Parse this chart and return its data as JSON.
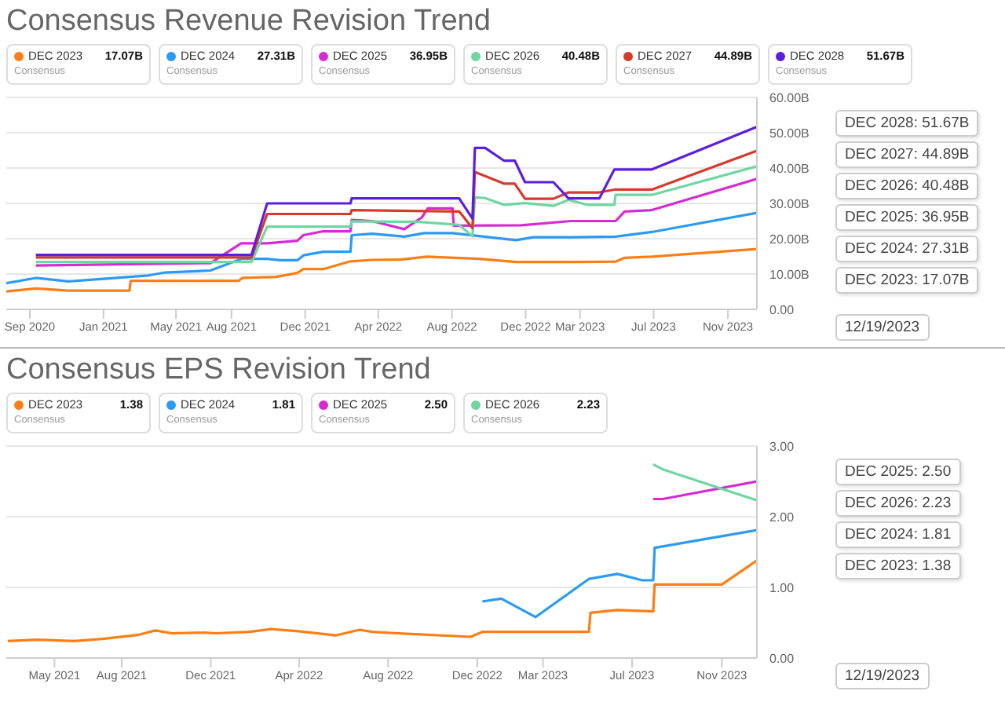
{
  "chart_data": [
    {
      "type": "line",
      "title": "Consensus Revenue Revision Trend",
      "legend": "top",
      "grid": "y",
      "marker": "none",
      "xlim": [
        "2020-07-24",
        "2023-12-19"
      ],
      "xticks": [
        {
          "value": "2020-09-01",
          "label": "Sep 2020"
        },
        {
          "value": "2021-01-01",
          "label": "Jan 2021"
        },
        {
          "value": "2021-05-01",
          "label": "May 2021"
        },
        {
          "value": "2021-08-01",
          "label": "Aug 2021"
        },
        {
          "value": "2021-12-01",
          "label": "Dec 2021"
        },
        {
          "value": "2022-04-01",
          "label": "Apr 2022"
        },
        {
          "value": "2022-08-01",
          "label": "Aug 2022"
        },
        {
          "value": "2022-12-01",
          "label": "Dec 2022"
        },
        {
          "value": "2023-03-01",
          "label": "Mar 2023"
        },
        {
          "value": "2023-07-01",
          "label": "Jul 2023"
        },
        {
          "value": "2023-11-01",
          "label": "Nov 2023"
        }
      ],
      "ylim": [
        0,
        60
      ],
      "yticks": [
        {
          "value": 0,
          "label": "0.00"
        },
        {
          "value": 10,
          "label": "10.00B"
        },
        {
          "value": 20,
          "label": "20.00B"
        },
        {
          "value": 30,
          "label": "30.00B"
        },
        {
          "value": 40,
          "label": "40.00B"
        },
        {
          "value": 50,
          "label": "50.00B"
        },
        {
          "value": 60,
          "label": "60.00B"
        }
      ],
      "annotations": [
        "17.07B",
        "27.31B",
        "36.95B",
        "40.48B",
        "44.89B",
        "51.67B",
        "Consensus",
        "Consensus",
        "Consensus",
        "Consensus",
        "Consensus",
        "Consensus",
        "DEC 2028: 51.67B",
        "DEC 2027: 44.89B",
        "DEC 2026: 40.48B",
        "DEC 2025: 36.95B",
        "DEC 2024: 27.31B",
        "DEC 2023: 17.07B",
        "12/19/2023"
      ],
      "series": [
        {
          "name": "DEC 2023",
          "color": "#fd7e14",
          "x": [
            "2020-07-24",
            "2020-09-11",
            "2020-11-04",
            "2021-02-13",
            "2021-02-15",
            "2021-08-13",
            "2021-08-19",
            "2021-10-14",
            "2021-11-18",
            "2021-11-28",
            "2021-12-31",
            "2022-02-14",
            "2022-03-22",
            "2022-05-08",
            "2022-06-20",
            "2022-09-15",
            "2022-11-15",
            "2023-02-14",
            "2023-04-29",
            "2023-05-14",
            "2023-06-28",
            "2023-12-19"
          ],
          "values": [
            5.1,
            5.9,
            5.3,
            5.3,
            8.1,
            8.1,
            8.9,
            9.2,
            10.3,
            11.4,
            11.4,
            13.6,
            14.0,
            14.1,
            14.9,
            14.3,
            13.4,
            13.4,
            13.5,
            14.6,
            14.9,
            17.07
          ]
        },
        {
          "name": "DEC 2024",
          "color": "#2b9af3",
          "x": [
            "2020-07-24",
            "2020-09-11",
            "2020-11-04",
            "2021-03-16",
            "2021-04-11",
            "2021-06-27",
            "2021-08-17",
            "2021-09-29",
            "2021-10-20",
            "2021-11-18",
            "2021-11-28",
            "2021-12-31",
            "2022-02-14",
            "2022-02-16",
            "2022-03-22",
            "2022-05-14",
            "2022-06-16",
            "2022-08-02",
            "2022-11-15",
            "2022-12-14",
            "2023-02-14",
            "2023-04-29",
            "2023-06-28",
            "2023-12-19"
          ],
          "values": [
            7.4,
            8.9,
            7.9,
            9.6,
            10.4,
            11.0,
            14.3,
            14.3,
            13.9,
            13.9,
            15.3,
            16.3,
            16.3,
            21.0,
            21.4,
            20.6,
            21.6,
            21.6,
            19.6,
            20.4,
            20.4,
            20.6,
            21.9,
            27.31
          ]
        },
        {
          "name": "DEC 2025",
          "color": "#d62ad3",
          "x": [
            "2020-09-11",
            "2021-06-27",
            "2021-08-17",
            "2021-09-29",
            "2021-11-18",
            "2021-11-28",
            "2021-12-31",
            "2022-02-14",
            "2022-02-16",
            "2022-03-22",
            "2022-05-14",
            "2022-06-12",
            "2022-06-22",
            "2022-08-02",
            "2022-08-04",
            "2022-11-24",
            "2023-02-14",
            "2023-04-29",
            "2023-05-14",
            "2023-06-28",
            "2023-12-19"
          ],
          "values": [
            12.4,
            13.1,
            18.7,
            18.7,
            19.4,
            21.0,
            22.1,
            22.1,
            25.3,
            25.0,
            22.7,
            26.0,
            28.6,
            28.6,
            23.7,
            23.8,
            25.0,
            25.0,
            27.7,
            28.1,
            36.95
          ]
        },
        {
          "name": "DEC 2026",
          "color": "#6fd6a0",
          "x": [
            "2020-09-11",
            "2021-09-03",
            "2021-09-29",
            "2022-02-14",
            "2022-02-16",
            "2022-06-04",
            "2022-08-13",
            "2022-09-04",
            "2022-09-08",
            "2022-09-25",
            "2022-10-26",
            "2022-11-30",
            "2023-01-16",
            "2023-02-10",
            "2023-03-13",
            "2023-04-27",
            "2023-04-29",
            "2023-06-28",
            "2023-12-19"
          ],
          "values": [
            13.4,
            13.4,
            23.4,
            23.4,
            24.9,
            24.8,
            23.9,
            20.7,
            31.7,
            31.5,
            29.6,
            30.1,
            29.3,
            31.0,
            29.6,
            29.6,
            32.4,
            32.4,
            40.48
          ]
        },
        {
          "name": "DEC 2027",
          "color": "#d63a2c",
          "x": [
            "2020-09-11",
            "2021-09-03",
            "2021-09-29",
            "2022-02-14",
            "2022-02-16",
            "2022-08-13",
            "2022-09-04",
            "2022-09-08",
            "2022-10-26",
            "2022-11-13",
            "2022-11-30",
            "2023-01-16",
            "2023-02-10",
            "2023-04-02",
            "2023-04-27",
            "2023-06-28",
            "2023-12-19"
          ],
          "values": [
            14.7,
            14.7,
            27.0,
            27.0,
            28.1,
            27.7,
            23.0,
            38.9,
            35.6,
            35.6,
            31.3,
            31.3,
            33.1,
            33.1,
            33.9,
            33.9,
            44.89
          ]
        },
        {
          "name": "DEC 2028",
          "color": "#5a1fe0",
          "x": [
            "2020-09-11",
            "2021-09-03",
            "2021-09-29",
            "2022-02-14",
            "2022-02-16",
            "2022-08-13",
            "2022-09-04",
            "2022-09-08",
            "2022-09-25",
            "2022-10-26",
            "2022-11-13",
            "2022-11-30",
            "2023-01-16",
            "2023-02-10",
            "2023-04-02",
            "2023-04-27",
            "2023-06-28",
            "2023-12-19"
          ],
          "values": [
            15.4,
            15.4,
            30.0,
            30.0,
            31.4,
            31.4,
            25.7,
            45.7,
            45.7,
            42.1,
            42.1,
            36.0,
            36.0,
            31.4,
            31.4,
            39.6,
            39.6,
            51.67
          ]
        }
      ]
    },
    {
      "type": "line",
      "title": "Consensus EPS Revision Trend",
      "legend": "top",
      "grid": "y",
      "marker": "none",
      "xlim": [
        "2021-02-24",
        "2023-12-19"
      ],
      "xticks": [
        {
          "value": "2021-05-01",
          "label": "May 2021"
        },
        {
          "value": "2021-08-01",
          "label": "Aug 2021"
        },
        {
          "value": "2021-12-01",
          "label": "Dec 2021"
        },
        {
          "value": "2022-04-01",
          "label": "Apr 2022"
        },
        {
          "value": "2022-08-01",
          "label": "Aug 2022"
        },
        {
          "value": "2022-12-01",
          "label": "Dec 2022"
        },
        {
          "value": "2023-03-01",
          "label": "Mar 2023"
        },
        {
          "value": "2023-07-01",
          "label": "Jul 2023"
        },
        {
          "value": "2023-11-01",
          "label": "Nov 2023"
        }
      ],
      "ylim": [
        0,
        3
      ],
      "yticks": [
        {
          "value": 0,
          "label": "0.00"
        },
        {
          "value": 1,
          "label": "1.00"
        },
        {
          "value": 2,
          "label": "2.00"
        },
        {
          "value": 3,
          "label": "3.00"
        }
      ],
      "annotations": [
        "1.38",
        "1.81",
        "2.50",
        "2.23",
        "Consensus",
        "Consensus",
        "Consensus",
        "Consensus",
        "DEC 2025: 2.50",
        "DEC 2026: 2.23",
        "DEC 2024: 1.81",
        "DEC 2023: 1.38",
        "12/19/2023"
      ],
      "series": [
        {
          "name": "DEC 2023",
          "color": "#fd7e14",
          "x": [
            "2021-02-26",
            "2021-04-07",
            "2021-05-28",
            "2021-07-06",
            "2021-08-25",
            "2021-09-16",
            "2021-10-09",
            "2021-11-22",
            "2021-12-09",
            "2022-01-23",
            "2022-02-22",
            "2022-03-31",
            "2022-05-21",
            "2022-06-23",
            "2022-07-10",
            "2022-08-13",
            "2022-11-22",
            "2022-12-08",
            "2023-05-03",
            "2023-05-05",
            "2023-06-11",
            "2023-07-30",
            "2023-08-01",
            "2023-11-01",
            "2023-12-19"
          ],
          "values": [
            0.24,
            0.26,
            0.24,
            0.27,
            0.33,
            0.39,
            0.35,
            0.36,
            0.35,
            0.37,
            0.41,
            0.38,
            0.32,
            0.4,
            0.37,
            0.35,
            0.3,
            0.37,
            0.37,
            0.64,
            0.68,
            0.66,
            1.04,
            1.04,
            1.38
          ]
        },
        {
          "name": "DEC 2024",
          "color": "#2b9af3",
          "x": [
            "2022-12-08",
            "2023-01-03",
            "2023-02-19",
            "2023-05-03",
            "2023-06-11",
            "2023-07-15",
            "2023-07-30",
            "2023-08-01",
            "2023-12-19"
          ],
          "values": [
            0.8,
            0.84,
            0.58,
            1.12,
            1.19,
            1.1,
            1.1,
            1.56,
            1.81
          ]
        },
        {
          "name": "DEC 2025",
          "color": "#d62ad3",
          "x": [
            "2023-07-30",
            "2023-08-12",
            "2023-12-19"
          ],
          "values": [
            2.25,
            2.25,
            2.5
          ]
        },
        {
          "name": "DEC 2026",
          "color": "#6fd6a0",
          "x": [
            "2023-07-30",
            "2023-08-12",
            "2023-12-19"
          ],
          "values": [
            2.74,
            2.67,
            2.23
          ]
        }
      ]
    }
  ]
}
